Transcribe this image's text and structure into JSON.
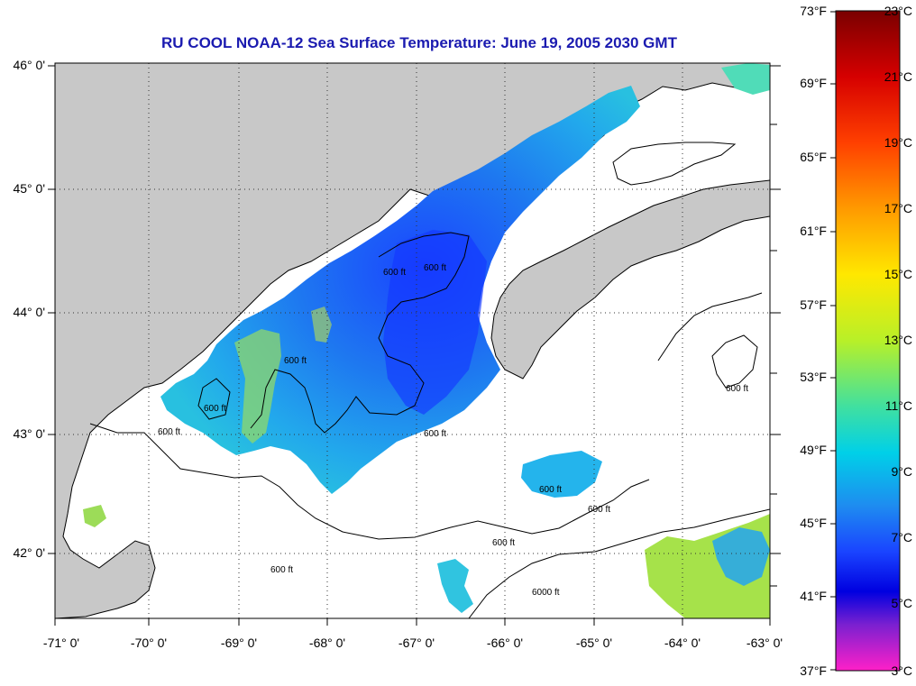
{
  "title": "RU COOL  NOAA-12  Sea Surface Temperature:  June 19, 2005 2030 GMT",
  "map": {
    "lon_range": [
      -71,
      -63
    ],
    "lat_range": [
      41.5,
      46.2
    ],
    "lon_labels": [
      "-71° 0'",
      "-70° 0'",
      "-69° 0'",
      "-68° 0'",
      "-67° 0'",
      "-66° 0'",
      "-65° 0'",
      "-64° 0'",
      "-63° 0'"
    ],
    "lat_labels": [
      "46° 0'",
      "45° 0'",
      "44° 0'",
      "43° 0'",
      "42° 0'"
    ],
    "contour_label": "600 ft",
    "contour_label_deep": "6000 ft",
    "land_color": "#c8c8c8",
    "ocean_color": "#ffffff"
  },
  "colorbar": {
    "fahrenheit_labels": [
      "73°F",
      "69°F",
      "65°F",
      "61°F",
      "57°F",
      "53°F",
      "49°F",
      "45°F",
      "41°F",
      "37°F"
    ],
    "celsius_labels": [
      "23°C",
      "21°C",
      "19°C",
      "17°C",
      "15°C",
      "13°C",
      "11°C",
      "9°C",
      "7°C",
      "5°C",
      "3°C"
    ],
    "stops": [
      "#7a0000",
      "#d60000",
      "#ff4000",
      "#ff9a00",
      "#ffe800",
      "#b8f028",
      "#40e0a0",
      "#00d0e8",
      "#1e8cf0",
      "#1a44ff",
      "#0000e0",
      "#7a20d0",
      "#ff20c8"
    ]
  }
}
